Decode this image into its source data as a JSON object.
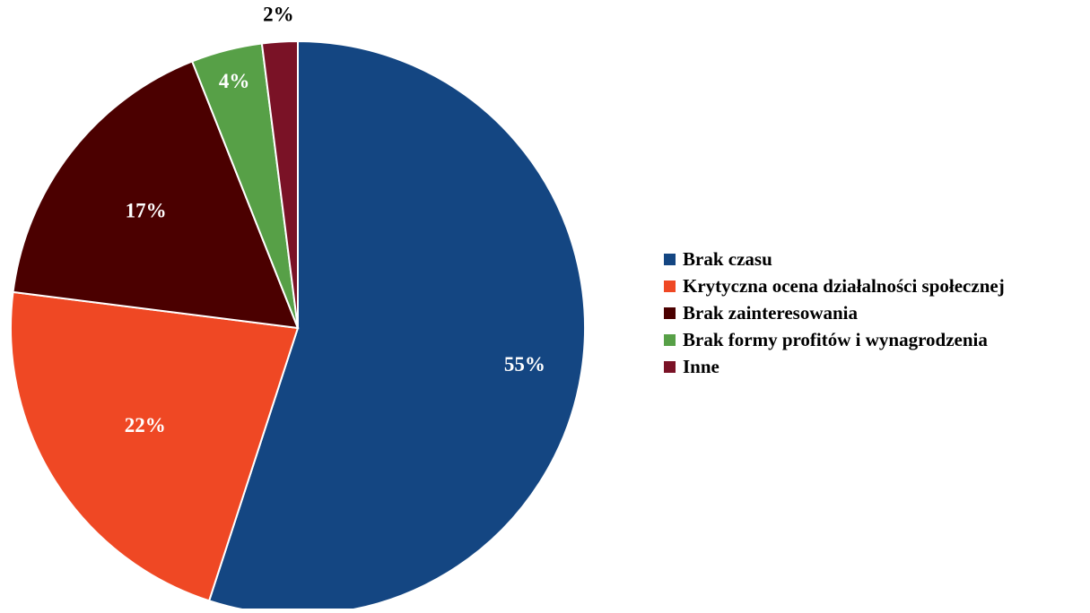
{
  "chart_data": {
    "type": "pie",
    "start_angle_deg": 0,
    "direction": "clockwise",
    "label_format": "percent",
    "slices": [
      {
        "label": "Brak czasu",
        "value": 55,
        "color": "#144682"
      },
      {
        "label": "Krytyczna ocena działalności społecznej",
        "value": 22,
        "color": "#ef4824"
      },
      {
        "label": "Brak zainteresowania",
        "value": 17,
        "color": "#4b0000"
      },
      {
        "label": "Brak formy profitów i wynagrodzenia",
        "value": 4,
        "color": "#57a047"
      },
      {
        "label": "Inne",
        "value": 2,
        "color": "#7a1226"
      }
    ],
    "legend": {
      "position": "right",
      "entries": [
        "Brak czasu",
        "Krytyczna ocena działalności społecznej",
        "Brak zainteresowania",
        "Brak formy profitów i wynagrodzenia",
        "Inne"
      ]
    }
  }
}
